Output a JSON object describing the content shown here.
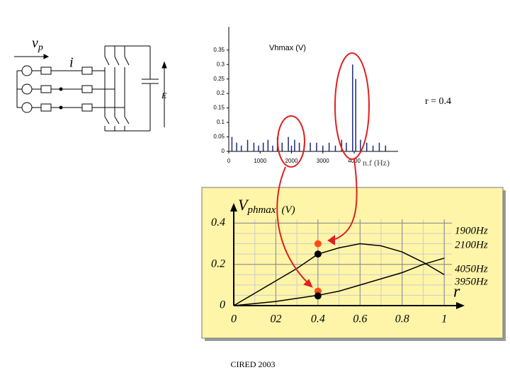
{
  "chart_data": [
    {
      "type": "stem",
      "title": "Vhmax (V)",
      "x_label": "n.f (Hz)",
      "color": "#1a2a7a",
      "x": [
        100,
        250,
        400,
        600,
        800,
        950,
        1100,
        1250,
        1400,
        1550,
        1700,
        1900,
        2000,
        2100,
        2250,
        2400,
        2600,
        2800,
        3000,
        3200,
        3400,
        3600,
        3750,
        3950,
        4050,
        4200,
        4400,
        4600,
        4800,
        5000
      ],
      "values": [
        0.05,
        0.03,
        0.02,
        0.04,
        0.03,
        0.02,
        0.03,
        0.04,
        0.02,
        0.05,
        0.03,
        0.05,
        0.02,
        0.04,
        0.03,
        0.02,
        0.03,
        0.03,
        0.02,
        0.03,
        0.02,
        0.04,
        0.03,
        0.3,
        0.25,
        0.04,
        0.03,
        0.02,
        0.03,
        0.02
      ],
      "xlim": [
        0,
        5400
      ],
      "xticks": [
        0,
        1000,
        2000,
        3000,
        4000
      ],
      "ylim": [
        0,
        0.43
      ],
      "yticks": [
        0,
        0.05,
        0.1,
        0.15,
        0.2,
        0.25,
        0.3,
        0.35
      ]
    },
    {
      "type": "line",
      "y_label": "V",
      "y_label_sub": "phmax",
      "y_label_unit": "(V)",
      "x_label": "r",
      "x": [
        0,
        0.1,
        0.2,
        0.3,
        0.4,
        0.5,
        0.6,
        0.7,
        0.8,
        0.9,
        1
      ],
      "series": [
        {
          "color": "#000000",
          "values": [
            0,
            0.06,
            0.12,
            0.18,
            0.25,
            0.28,
            0.3,
            0.29,
            0.26,
            0.21,
            0.15
          ]
        },
        {
          "color": "#000000",
          "values": [
            0,
            0.01,
            0.02,
            0.035,
            0.05,
            0.07,
            0.1,
            0.13,
            0.16,
            0.2,
            0.23
          ]
        }
      ],
      "points": [
        {
          "x": 0.4,
          "y": 0.3,
          "color": "#ff4d1a"
        },
        {
          "x": 0.4,
          "y": 0.25,
          "color": "#000000"
        },
        {
          "x": 0.4,
          "y": 0.07,
          "color": "#ff4d1a"
        },
        {
          "x": 0.4,
          "y": 0.047,
          "color": "#000000"
        }
      ],
      "annotations": [
        "1900Hz",
        "2100Hz",
        "4050Hz",
        "3950Hz"
      ],
      "xlim": [
        0,
        1.07
      ],
      "xticks": [
        0,
        {
          "value": 0.2,
          "label": "02"
        },
        0.4,
        0.6,
        0.8,
        1
      ],
      "ylim": [
        0,
        0.47
      ],
      "yticks": [
        0,
        0.2,
        0.4
      ],
      "grid": true,
      "background": "#fff5a8"
    }
  ],
  "circuit": {
    "voltage": "v",
    "voltage_sub": "p",
    "current": "i",
    "dc_voltage": "E"
  },
  "r_note": "r = 0.4",
  "footer": "CIRED 2003"
}
